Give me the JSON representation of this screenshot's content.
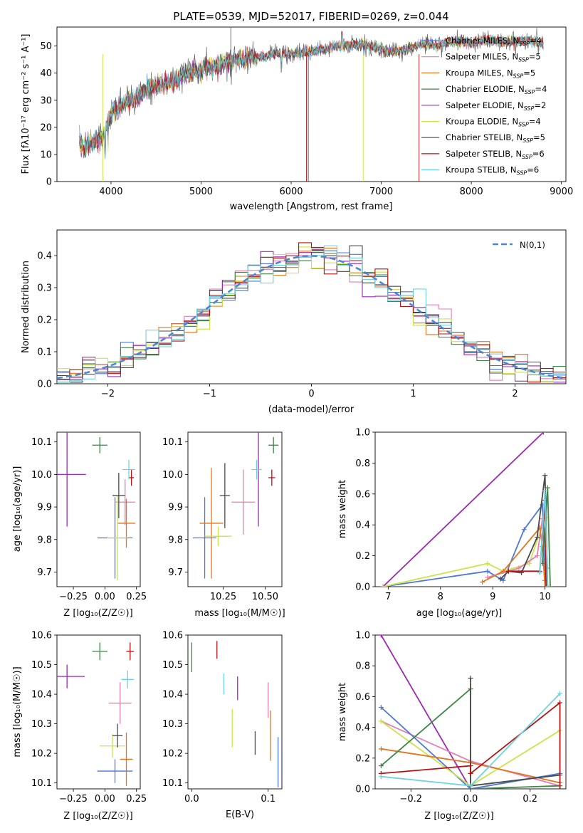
{
  "title": "PLATE=0539, MJD=52017, FIBERID=0269, z=0.044",
  "models": [
    {
      "key": "Chabrier MILES",
      "n": 4,
      "color": "#4f77d6"
    },
    {
      "key": "Salpeter MILES",
      "n": 5,
      "color": "#e27fb4"
    },
    {
      "key": "Kroupa MILES",
      "n": 5,
      "color": "#e2751f"
    },
    {
      "key": "Chabrier ELODIE",
      "n": 4,
      "color": "#3e8546"
    },
    {
      "key": "Salpeter ELODIE",
      "n": 2,
      "color": "#9b2bb2"
    },
    {
      "key": "Kroupa ELODIE",
      "n": 4,
      "color": "#cde34b"
    },
    {
      "key": "Chabrier STELIB",
      "n": 5,
      "color": "#4a4a4a"
    },
    {
      "key": "Salpeter STELIB",
      "n": 6,
      "color": "#b51313"
    },
    {
      "key": "Kroupa STELIB",
      "n": 6,
      "color": "#6fd3df"
    }
  ],
  "legend_suffix": "SSP",
  "gaussian_label": "N(0,1)",
  "axes": {
    "spec_xlabel": "wavelength [Angstrom, rest frame]",
    "spec_ylabel": "Flux [fλ10⁻¹⁷ erg cm⁻² s⁻¹ A⁻¹]",
    "hist_xlabel": "(data-model)/error",
    "hist_ylabel": "Normed distribution",
    "age_label": "age  [log₁₀(age/yr)]",
    "mass_label": "mass [log₁₀(M/M☉)]",
    "z_label": "Z [log₁₀(Z/Z☉)]",
    "ebv_label": "E(B-V)",
    "weight_label": "mass weight"
  },
  "chart_data": [
    {
      "type": "line",
      "name": "spectrum",
      "xlim": [
        3400,
        9050
      ],
      "ylim": [
        0,
        57
      ],
      "xticks": [
        4000,
        5000,
        6000,
        7000,
        8000,
        9000
      ],
      "yticks": [
        0,
        10,
        20,
        30,
        40,
        50
      ],
      "continuum": [
        [
          3650,
          14
        ],
        [
          3700,
          12
        ],
        [
          3800,
          15
        ],
        [
          3900,
          16
        ],
        [
          3950,
          20
        ],
        [
          4000,
          25
        ],
        [
          4100,
          28
        ],
        [
          4200,
          30
        ],
        [
          4300,
          31
        ],
        [
          4400,
          34
        ],
        [
          4500,
          35
        ],
        [
          4600,
          36
        ],
        [
          4700,
          37
        ],
        [
          4800,
          39
        ],
        [
          4900,
          40
        ],
        [
          5000,
          41
        ],
        [
          5100,
          42
        ],
        [
          5200,
          43
        ],
        [
          5300,
          44
        ],
        [
          5400,
          45
        ],
        [
          5500,
          45.5
        ],
        [
          5600,
          46
        ],
        [
          5700,
          46
        ],
        [
          5800,
          47
        ],
        [
          5900,
          47.5
        ],
        [
          6000,
          47
        ],
        [
          6100,
          47.5
        ],
        [
          6200,
          48
        ],
        [
          6300,
          48.5
        ],
        [
          6400,
          49
        ],
        [
          6500,
          50
        ],
        [
          6600,
          50
        ],
        [
          6700,
          50.5
        ],
        [
          6800,
          50.5
        ],
        [
          6900,
          50
        ],
        [
          7000,
          49
        ],
        [
          7100,
          48
        ],
        [
          7200,
          48
        ],
        [
          7300,
          49
        ],
        [
          7400,
          50
        ],
        [
          7500,
          51
        ],
        [
          7600,
          50
        ],
        [
          7700,
          51
        ],
        [
          7800,
          51.5
        ],
        [
          7900,
          51.5
        ],
        [
          8000,
          51
        ],
        [
          8100,
          52
        ],
        [
          8200,
          52
        ],
        [
          8300,
          52
        ],
        [
          8400,
          51.5
        ],
        [
          8500,
          52
        ],
        [
          8600,
          52
        ],
        [
          8700,
          51.5
        ],
        [
          8800,
          51
        ]
      ]
    },
    {
      "type": "bar",
      "name": "residual histogram",
      "xlim": [
        -2.5,
        2.5
      ],
      "ylim": [
        0,
        0.48
      ],
      "xticks": [
        -2,
        -1,
        0,
        1,
        2
      ],
      "yticks": [
        0.0,
        0.1,
        0.2,
        0.3,
        0.4
      ],
      "gaussian": {
        "mean": 0,
        "sigma": 1
      },
      "bins": 40
    },
    {
      "type": "scatter",
      "name": "age vs Z",
      "xlim": [
        -0.38,
        0.28
      ],
      "ylim": [
        9.655,
        10.13
      ],
      "xticks": [
        -0.25,
        0.0,
        0.25
      ],
      "xticklabels": [
        "−0.25",
        "0.00",
        "0.25"
      ],
      "yticks": [
        9.7,
        9.8,
        9.9,
        10.0,
        10.1
      ],
      "points": [
        {
          "model": 0,
          "x": 0.08,
          "y": 9.805,
          "xerr": 0.14,
          "yerr": 0.125
        },
        {
          "model": 1,
          "x": 0.16,
          "y": 9.915,
          "xerr": 0.08,
          "yerr": 0.07
        },
        {
          "model": 2,
          "x": 0.17,
          "y": 9.85,
          "xerr": 0.07,
          "yerr": 0.075
        },
        {
          "model": 3,
          "x": -0.04,
          "y": 10.09,
          "xerr": 0.06,
          "yerr": 0.025
        },
        {
          "model": 4,
          "x": -0.3,
          "y": 10.0,
          "xerr": 0.15,
          "yerr": 0.16
        },
        {
          "model": 5,
          "x": 0.1,
          "y": 9.805,
          "xerr": 0.08,
          "yerr": 0.13
        },
        {
          "model": 6,
          "x": 0.11,
          "y": 9.935,
          "xerr": 0.05,
          "yerr": 0.07
        },
        {
          "model": 7,
          "x": 0.21,
          "y": 9.99,
          "xerr": 0.02,
          "yerr": 0.025
        },
        {
          "model": 8,
          "x": 0.19,
          "y": 10.015,
          "xerr": 0.05,
          "yerr": 0.03
        }
      ]
    },
    {
      "type": "scatter",
      "name": "age vs mass",
      "xlim": [
        10.04,
        10.6
      ],
      "ylim": [
        9.655,
        10.13
      ],
      "xticks": [
        10.25,
        10.5
      ],
      "xticklabels": [
        "10.25",
        "10.50"
      ],
      "yticks": [
        9.7,
        9.8,
        9.9,
        10.0,
        10.1
      ],
      "points": [
        {
          "model": 0,
          "x": 10.14,
          "y": 9.805,
          "xerr": 0.07,
          "yerr": 0.125
        },
        {
          "model": 1,
          "x": 10.37,
          "y": 9.915,
          "xerr": 0.07,
          "yerr": 0.1
        },
        {
          "model": 2,
          "x": 10.18,
          "y": 9.85,
          "xerr": 0.07,
          "yerr": 0.17
        },
        {
          "model": 3,
          "x": 10.55,
          "y": 10.09,
          "xerr": 0.03,
          "yerr": 0.025
        },
        {
          "model": 4,
          "x": 10.46,
          "y": 10.0,
          "xerr": 0.0,
          "yerr": 0.16
        },
        {
          "model": 5,
          "x": 10.22,
          "y": 9.81,
          "xerr": 0.08,
          "yerr": 0.03
        },
        {
          "model": 6,
          "x": 10.26,
          "y": 9.935,
          "xerr": 0.03,
          "yerr": 0.1
        },
        {
          "model": 7,
          "x": 10.54,
          "y": 9.99,
          "xerr": 0.02,
          "yerr": 0.025
        },
        {
          "model": 8,
          "x": 10.45,
          "y": 10.015,
          "xerr": 0.03,
          "yerr": 0.03
        }
      ]
    },
    {
      "type": "line",
      "name": "mass weight vs age",
      "xlim": [
        6.75,
        10.4
      ],
      "ylim": [
        0,
        1.0
      ],
      "xticks": [
        7,
        8,
        9,
        10
      ],
      "yticks": [
        0.0,
        0.2,
        0.4,
        0.6,
        0.8,
        1.0
      ],
      "series": [
        {
          "model": 4,
          "points": [
            [
              6.9,
              0.0
            ],
            [
              9.97,
              1.0
            ]
          ]
        },
        {
          "model": 0,
          "points": [
            [
              6.9,
              0.0
            ],
            [
              8.9,
              0.1
            ],
            [
              9.2,
              0.04
            ],
            [
              9.6,
              0.37
            ],
            [
              9.95,
              0.53
            ],
            [
              10.0,
              0.04
            ]
          ]
        },
        {
          "model": 5,
          "points": [
            [
              6.9,
              0.0
            ],
            [
              8.9,
              0.15
            ],
            [
              9.2,
              0.1
            ],
            [
              9.7,
              0.15
            ],
            [
              10.0,
              0.45
            ],
            [
              10.05,
              0.0
            ]
          ]
        },
        {
          "model": 1,
          "points": [
            [
              8.9,
              0.06
            ],
            [
              9.5,
              0.12
            ],
            [
              9.85,
              0.2
            ],
            [
              9.95,
              0.44
            ],
            [
              10.05,
              0.12
            ]
          ]
        },
        {
          "model": 2,
          "points": [
            [
              8.8,
              0.03
            ],
            [
              9.2,
              0.1
            ],
            [
              9.9,
              0.38
            ],
            [
              9.95,
              0.26
            ],
            [
              10.0,
              0.0
            ]
          ]
        },
        {
          "model": 6,
          "points": [
            [
              9.15,
              0.05
            ],
            [
              9.3,
              0.1
            ],
            [
              9.55,
              0.09
            ],
            [
              9.85,
              0.32
            ],
            [
              10.0,
              0.72
            ],
            [
              10.05,
              0.0
            ]
          ]
        },
        {
          "model": 7,
          "points": [
            [
              9.3,
              0.1
            ],
            [
              9.9,
              0.1
            ],
            [
              10.0,
              0.56
            ],
            [
              10.02,
              0.0
            ]
          ]
        },
        {
          "model": 3,
          "points": [
            [
              9.95,
              0.15
            ],
            [
              10.05,
              0.64
            ],
            [
              10.1,
              0.0
            ]
          ]
        },
        {
          "model": 8,
          "points": [
            [
              9.9,
              0.09
            ],
            [
              10.0,
              0.62
            ],
            [
              10.05,
              0.0
            ]
          ]
        }
      ]
    },
    {
      "type": "scatter",
      "name": "mass vs Z",
      "xlim": [
        -0.38,
        0.28
      ],
      "ylim": [
        10.08,
        10.6
      ],
      "xticks": [
        -0.25,
        0.0,
        0.25
      ],
      "xticklabels": [
        "−0.25",
        "0.00",
        "0.25"
      ],
      "yticks": [
        10.1,
        10.2,
        10.3,
        10.4,
        10.5,
        10.6
      ],
      "points": [
        {
          "model": 0,
          "x": 0.08,
          "y": 10.14,
          "xerr": 0.14,
          "yerr": 0.04
        },
        {
          "model": 1,
          "x": 0.12,
          "y": 10.37,
          "xerr": 0.09,
          "yerr": 0.07
        },
        {
          "model": 2,
          "x": 0.17,
          "y": 10.18,
          "xerr": 0.05,
          "yerr": 0.09
        },
        {
          "model": 3,
          "x": -0.04,
          "y": 10.545,
          "xerr": 0.06,
          "yerr": 0.03
        },
        {
          "model": 4,
          "x": -0.3,
          "y": 10.46,
          "xerr": 0.14,
          "yerr": 0.04
        },
        {
          "model": 5,
          "x": 0.06,
          "y": 10.225,
          "xerr": 0.1,
          "yerr": 0.04
        },
        {
          "model": 6,
          "x": 0.1,
          "y": 10.26,
          "xerr": 0.04,
          "yerr": 0.04
        },
        {
          "model": 7,
          "x": 0.2,
          "y": 10.545,
          "xerr": 0.03,
          "yerr": 0.03
        },
        {
          "model": 8,
          "x": 0.18,
          "y": 10.45,
          "xerr": 0.05,
          "yerr": 0.03
        }
      ]
    },
    {
      "type": "scatter",
      "name": "mass vs E(B-V)",
      "xlim": [
        -0.005,
        0.118
      ],
      "ylim": [
        10.08,
        10.6
      ],
      "xticks": [
        0.0,
        0.1
      ],
      "xticklabels": [
        "0.0",
        "0.1"
      ],
      "yticks": [
        10.1,
        10.2,
        10.3,
        10.4,
        10.5,
        10.6
      ],
      "points": [
        {
          "model": 0,
          "x": 0.113,
          "y": 10.17,
          "xerr": 0,
          "yerr": 0.085
        },
        {
          "model": 1,
          "x": 0.1,
          "y": 10.38,
          "xerr": 0,
          "yerr": 0.06
        },
        {
          "model": 2,
          "x": 0.103,
          "y": 10.26,
          "xerr": 0,
          "yerr": 0.085
        },
        {
          "model": 3,
          "x": 0.0,
          "y": 10.525,
          "xerr": 0,
          "yerr": 0.05
        },
        {
          "model": 4,
          "x": 0.06,
          "y": 10.42,
          "xerr": 0,
          "yerr": 0.04
        },
        {
          "model": 5,
          "x": 0.053,
          "y": 10.285,
          "xerr": 0,
          "yerr": 0.065
        },
        {
          "model": 6,
          "x": 0.083,
          "y": 10.235,
          "xerr": 0,
          "yerr": 0.04
        },
        {
          "model": 7,
          "x": 0.033,
          "y": 10.55,
          "xerr": 0,
          "yerr": 0.03
        },
        {
          "model": 8,
          "x": 0.042,
          "y": 10.435,
          "xerr": 0,
          "yerr": 0.035
        }
      ]
    },
    {
      "type": "line",
      "name": "mass weight vs Z",
      "xlim": [
        -0.32,
        0.32
      ],
      "ylim": [
        0,
        1.0
      ],
      "xticks": [
        -0.2,
        0.0,
        0.2
      ],
      "xticklabels": [
        "−0.2",
        "0.0",
        "0.2"
      ],
      "yticks": [
        0.0,
        0.2,
        0.4,
        0.6,
        0.8,
        1.0
      ],
      "series": [
        {
          "model": 4,
          "points": [
            [
              -0.3,
              1.0
            ],
            [
              0.0,
              0.0
            ]
          ]
        },
        {
          "model": 1,
          "points": [
            [
              -0.3,
              0.44
            ],
            [
              0.0,
              0.18
            ],
            [
              0.3,
              0.02
            ]
          ]
        },
        {
          "model": 0,
          "points": [
            [
              -0.3,
              0.53
            ],
            [
              0.0,
              0.0
            ],
            [
              0.3,
              0.1
            ]
          ]
        },
        {
          "model": 5,
          "points": [
            [
              -0.3,
              0.44
            ],
            [
              0.0,
              0.02
            ],
            [
              0.3,
              0.38
            ]
          ]
        },
        {
          "model": 2,
          "points": [
            [
              -0.3,
              0.26
            ],
            [
              0.0,
              0.17
            ],
            [
              0.3,
              0.04
            ]
          ]
        },
        {
          "model": 3,
          "points": [
            [
              -0.3,
              0.15
            ],
            [
              0.0,
              0.65
            ],
            [
              0.0,
              0.0
            ],
            [
              0.3,
              0.02
            ]
          ]
        },
        {
          "model": 6,
          "points": [
            [
              0.0,
              0.72
            ],
            [
              0.0,
              0.02
            ],
            [
              0.3,
              0.09
            ]
          ]
        },
        {
          "model": 7,
          "points": [
            [
              -0.3,
              0.1
            ],
            [
              0.0,
              0.15
            ],
            [
              0.0,
              0.1
            ],
            [
              0.3,
              0.56
            ],
            [
              0.3,
              0.0
            ]
          ]
        },
        {
          "model": 8,
          "points": [
            [
              -0.3,
              0.08
            ],
            [
              0.0,
              0.02
            ],
            [
              0.3,
              0.62
            ]
          ]
        }
      ]
    }
  ]
}
